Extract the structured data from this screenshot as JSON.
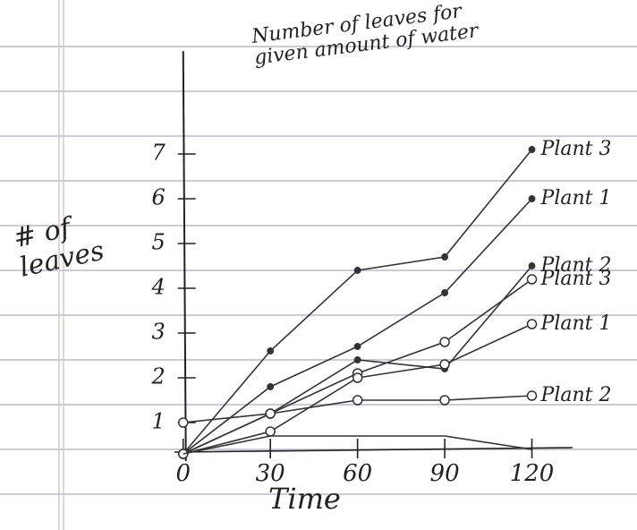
{
  "chart_data": {
    "type": "line",
    "title": "Number of leaves for given amount of water",
    "y_label": "# of leaves",
    "x_label": "Time",
    "x": [
      0,
      30,
      60,
      90,
      120
    ],
    "xlim": [
      -3,
      134
    ],
    "ylim": [
      0,
      9.3
    ],
    "xticks": [
      0,
      30,
      60,
      90,
      120
    ],
    "yticks": [
      1,
      2,
      3,
      4,
      5,
      6,
      7
    ],
    "series": [
      {
        "name": "Plant 3",
        "marker": "filled",
        "color": "#333333",
        "values": [
          0.3,
          2.6,
          4.4,
          4.7,
          7.1
        ]
      },
      {
        "name": "Plant 1",
        "marker": "filled",
        "color": "#333333",
        "values": [
          0.3,
          1.8,
          2.7,
          3.9,
          6.0
        ]
      },
      {
        "name": "Plant 3",
        "marker": "open",
        "color": "#333333",
        "values": [
          0.3,
          1.2,
          2.1,
          2.8,
          4.2
        ]
      },
      {
        "name": "Plant 2",
        "marker": "filled",
        "color": "#333333",
        "values": [
          0.3,
          1.2,
          2.4,
          2.2,
          4.5
        ]
      },
      {
        "name": "Plant 1",
        "marker": "open",
        "color": "#333333",
        "values": [
          0.3,
          0.8,
          2.0,
          2.3,
          3.2
        ]
      },
      {
        "name": "Plant 2",
        "marker": "open",
        "color": "#333333",
        "values": [
          1.0,
          1.2,
          1.5,
          1.5,
          1.6
        ]
      },
      {
        "marker": "none",
        "color": "#333333",
        "values": [
          0.3,
          0.7,
          0.7,
          0.7,
          0.4
        ]
      }
    ]
  }
}
